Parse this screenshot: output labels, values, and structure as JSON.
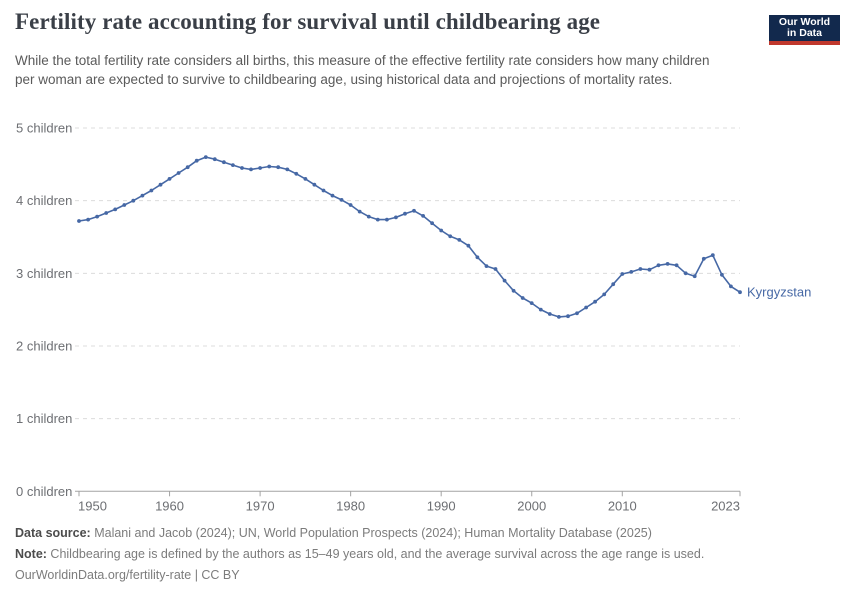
{
  "header": {
    "title": "Fertility rate accounting for survival until childbearing age",
    "subtitle": "While the total fertility rate considers all births, this measure of the effective fertility rate considers how many children per woman are expected to survive to childbearing age, using historical data and projections of mortality rates.",
    "logo": {
      "line1": "Our World",
      "line2": "in Data",
      "bg_color": "#12294d",
      "bar_color": "#c0382d"
    }
  },
  "chart_data": {
    "type": "line",
    "title": "Fertility rate accounting for survival until childbearing age",
    "xlabel": "",
    "ylabel": "",
    "xlim": [
      1950,
      2023
    ],
    "ylim": [
      0,
      5
    ],
    "grid": "horizontal dashed gridlines, solid baseline at 0",
    "legend_position": "end-of-line entity label",
    "xticks": [
      1950,
      1960,
      1970,
      1980,
      1990,
      2000,
      2010,
      2023
    ],
    "yticks": [
      {
        "value": 0,
        "label": "0 children"
      },
      {
        "value": 1,
        "label": "1 children"
      },
      {
        "value": 2,
        "label": "2 children"
      },
      {
        "value": 3,
        "label": "3 children"
      },
      {
        "value": 4,
        "label": "4 children"
      },
      {
        "value": 5,
        "label": "5 children"
      }
    ],
    "series": [
      {
        "name": "Kyrgyzstan",
        "color": "#4668a5",
        "years": [
          1950,
          1951,
          1952,
          1953,
          1954,
          1955,
          1956,
          1957,
          1958,
          1959,
          1960,
          1961,
          1962,
          1963,
          1964,
          1965,
          1966,
          1967,
          1968,
          1969,
          1970,
          1971,
          1972,
          1973,
          1974,
          1975,
          1976,
          1977,
          1978,
          1979,
          1980,
          1981,
          1982,
          1983,
          1984,
          1985,
          1986,
          1987,
          1988,
          1989,
          1990,
          1991,
          1992,
          1993,
          1994,
          1995,
          1996,
          1997,
          1998,
          1999,
          2000,
          2001,
          2002,
          2003,
          2004,
          2005,
          2006,
          2007,
          2008,
          2009,
          2010,
          2011,
          2012,
          2013,
          2014,
          2015,
          2016,
          2017,
          2018,
          2019,
          2020,
          2021,
          2022,
          2023
        ],
        "values": [
          3.72,
          3.74,
          3.78,
          3.83,
          3.88,
          3.94,
          4.0,
          4.07,
          4.14,
          4.22,
          4.3,
          4.38,
          4.46,
          4.55,
          4.6,
          4.57,
          4.53,
          4.49,
          4.45,
          4.43,
          4.45,
          4.47,
          4.46,
          4.43,
          4.37,
          4.3,
          4.22,
          4.14,
          4.07,
          4.01,
          3.94,
          3.85,
          3.78,
          3.74,
          3.74,
          3.77,
          3.82,
          3.86,
          3.79,
          3.69,
          3.59,
          3.51,
          3.46,
          3.38,
          3.22,
          3.1,
          3.06,
          2.9,
          2.76,
          2.66,
          2.59,
          2.5,
          2.44,
          2.4,
          2.41,
          2.45,
          2.53,
          2.61,
          2.71,
          2.85,
          2.99,
          3.02,
          3.06,
          3.05,
          3.11,
          3.13,
          3.11,
          3.0,
          2.96,
          3.2,
          3.25,
          2.98,
          2.82,
          2.74
        ]
      }
    ]
  },
  "footer": {
    "datasource_label": "Data source:",
    "datasource": " Malani and Jacob (2024); UN, World Population Prospects (2024); Human Mortality Database (2025)",
    "note_label": "Note:",
    "note": " Childbearing age is defined by the authors as 15–49 years old, and the average survival across the age range is used.",
    "license": "OurWorldinData.org/fertility-rate | CC BY"
  }
}
